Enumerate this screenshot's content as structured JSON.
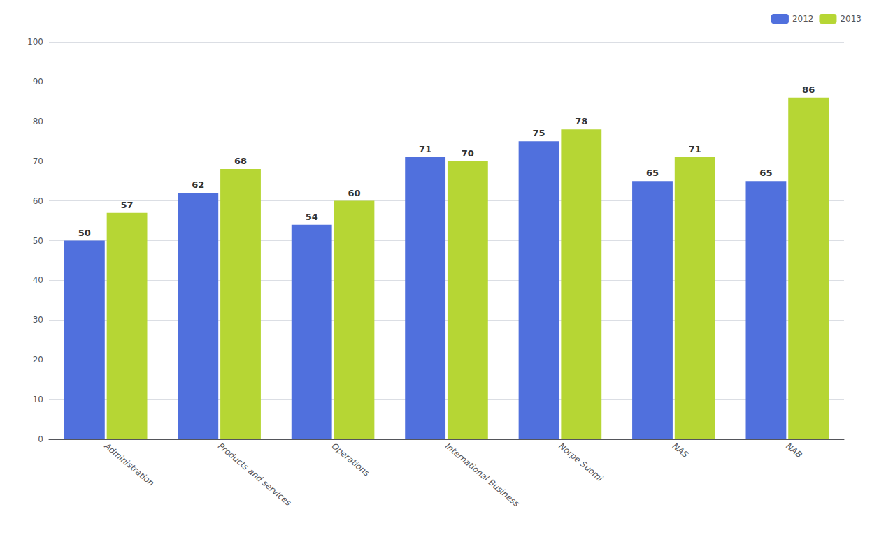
{
  "chart_data": {
    "type": "bar",
    "categories": [
      "Administration",
      "Products and services",
      "Operations",
      "International Business",
      "Norpe Suomi",
      "NAS",
      "NAB"
    ],
    "series": [
      {
        "name": "2012",
        "values": [
          50,
          62,
          54,
          71,
          75,
          65,
          65
        ]
      },
      {
        "name": "2013",
        "values": [
          57,
          68,
          60,
          70,
          78,
          71,
          86
        ]
      }
    ],
    "ylim": [
      0,
      100
    ],
    "yticks": [
      0,
      10,
      20,
      30,
      40,
      50,
      60,
      70,
      80,
      90,
      100
    ],
    "grid": true,
    "legend": "upper right",
    "data_labels": true
  }
}
